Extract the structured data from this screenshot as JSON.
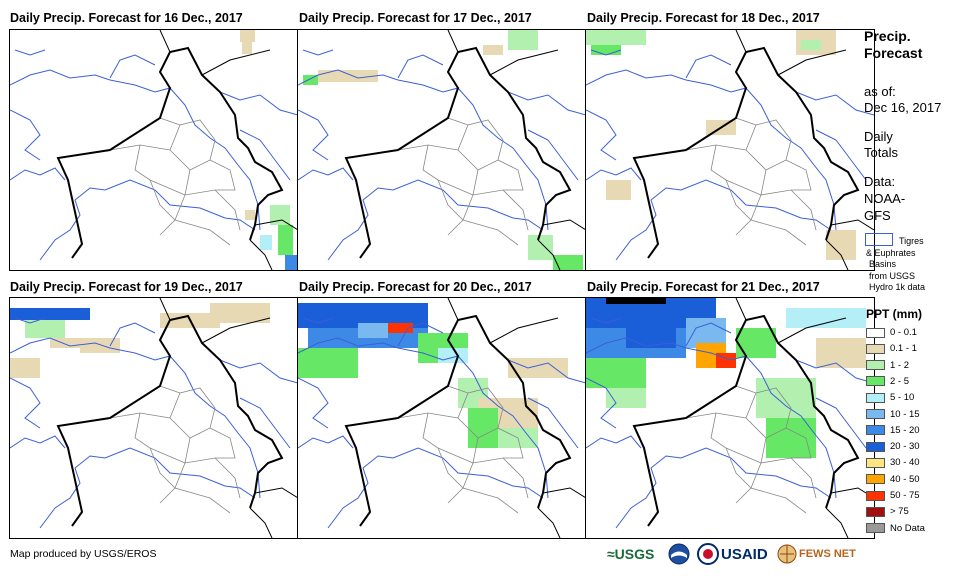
{
  "panels": [
    {
      "title": "Daily Precip. Forecast for 16 Dec., 2017"
    },
    {
      "title": "Daily Precip. Forecast for 17 Dec., 2017"
    },
    {
      "title": "Daily Precip. Forecast for 18 Dec., 2017"
    },
    {
      "title": "Daily Precip. Forecast for 19 Dec., 2017"
    },
    {
      "title": "Daily Precip. Forecast for 20 Dec., 2017"
    },
    {
      "title": "Daily Precip. Forecast for 21 Dec., 2017"
    }
  ],
  "sidebar": {
    "title_line1": "Precip.",
    "title_line2": "Forecast",
    "asof_label": "as of:",
    "asof_date": "Dec 16, 2017",
    "totals_line1": "Daily",
    "totals_line2": "Totals",
    "data_line1": "Data:",
    "data_line2": "NOAA-",
    "data_line3": "GFS",
    "basin_line1": "Tigres",
    "basin_line2": "& Euphrates",
    "basin_line3": "Basins",
    "basin_line4": "from USGS",
    "basin_line5": "Hydro 1k data"
  },
  "legend": {
    "title": "PPT (mm)",
    "items": [
      {
        "label": "0 - 0.1",
        "color": "#ffffff"
      },
      {
        "label": "0.1 - 1",
        "color": "#e8d9b5"
      },
      {
        "label": "1 - 2",
        "color": "#b2f0b0"
      },
      {
        "label": "2 - 5",
        "color": "#66e866"
      },
      {
        "label": "5 - 10",
        "color": "#b4eef6"
      },
      {
        "label": "10 - 15",
        "color": "#7ab8f0"
      },
      {
        "label": "15 - 20",
        "color": "#3d8ae6"
      },
      {
        "label": "20 - 30",
        "color": "#1a5ed8"
      },
      {
        "label": "30 - 40",
        "color": "#ffe680"
      },
      {
        "label": "40 - 50",
        "color": "#ffa500"
      },
      {
        "label": "50 - 75",
        "color": "#ff3300"
      },
      {
        "label": "> 75",
        "color": "#a01010"
      },
      {
        "label": "No Data",
        "color": "#999999"
      }
    ]
  },
  "footer": {
    "credit": "Map produced by USGS/EROS",
    "logo_usgs": "≈USGS",
    "logo_noaa": "NOAA",
    "logo_usaid": "USAID",
    "logo_fewsnet": "FEWS NET"
  }
}
